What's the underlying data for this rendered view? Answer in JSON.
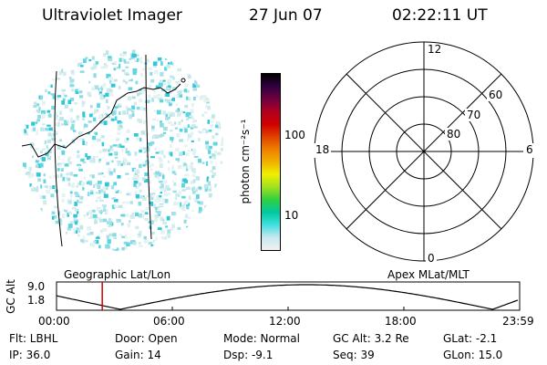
{
  "header": {
    "instrument": "Ultraviolet Imager",
    "date": "27 Jun 07",
    "time": "02:22:11 UT"
  },
  "colorbar": {
    "label": "photon cm⁻²s⁻¹",
    "ticks": [
      {
        "label": "100",
        "value": 100
      },
      {
        "label": "10",
        "value": 10
      }
    ],
    "colors": [
      "#f0f0f0",
      "#c8e8f0",
      "#40e0e0",
      "#00c8a0",
      "#30d040",
      "#a0e020",
      "#f0f000",
      "#f0b000",
      "#f08000",
      "#e04000",
      "#d00000",
      "#b00020",
      "#700040",
      "#300040",
      "#000000"
    ]
  },
  "polar_plot": {
    "mlt_labels": {
      "top": "12",
      "left": "18",
      "right": "6",
      "bottom": "0"
    },
    "lat_labels": [
      "60",
      "70",
      "80"
    ]
  },
  "geo_label": "Geographic Lat/Lon",
  "apex_label": "Apex MLat/MLT",
  "orbit_plot": {
    "ylabel": "GC Alt",
    "yticks": [
      "9.0",
      "1.8"
    ],
    "xticks": [
      "00:00",
      "06:00",
      "12:00",
      "18:00",
      "23:59"
    ],
    "marker_time_hours": 2.37,
    "marker_color": "#d00000"
  },
  "info": {
    "filter": "Flt: LBHL",
    "door": "Door: Open",
    "mode": "Mode: Normal",
    "gc_alt": "GC Alt: 3.2 Re",
    "glat": "GLat:  -2.1",
    "ip": "IP: 36.0",
    "gain": "Gain: 14",
    "dsp": "Dsp:   -9.1",
    "seq": "Seq: 39",
    "glon": "GLon:  15.0"
  }
}
